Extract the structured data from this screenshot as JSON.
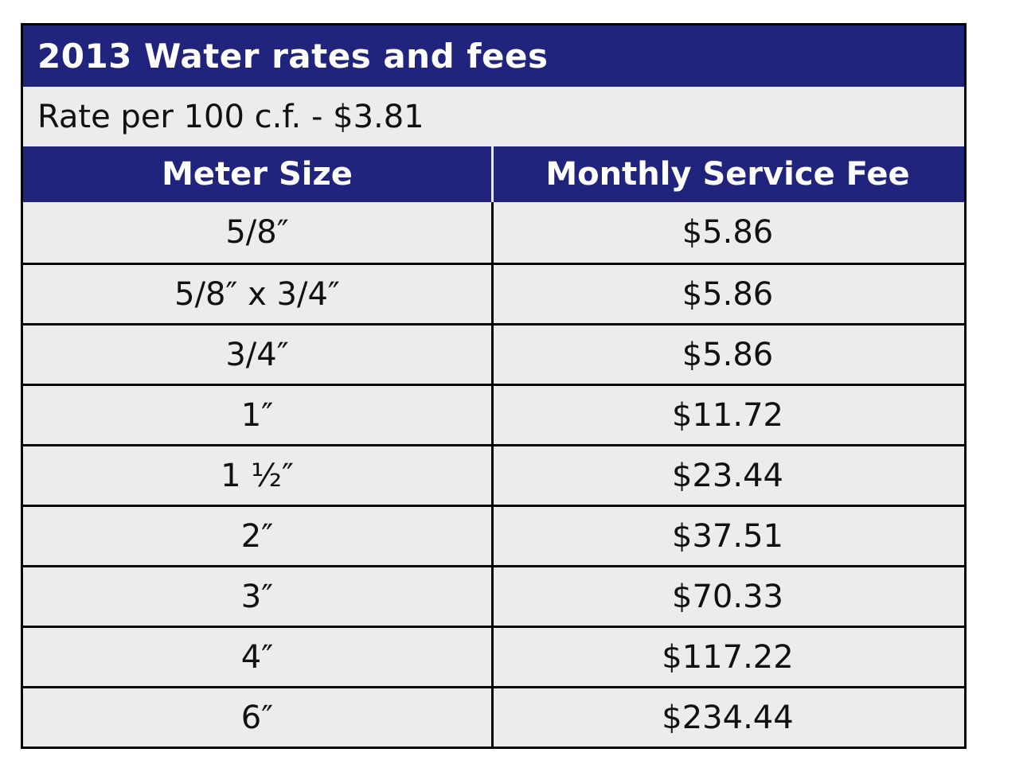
{
  "table": {
    "title": "2013 Water rates and fees",
    "rate_line": "Rate per 100 c.f. - $3.81",
    "headers": [
      "Meter Size",
      "Monthly Service Fee"
    ],
    "rows": [
      {
        "meter_size": "5/8″",
        "fee": "$5.86"
      },
      {
        "meter_size": "5/8″ x 3/4″",
        "fee": "$5.86"
      },
      {
        "meter_size": "3/4″",
        "fee": "$5.86"
      },
      {
        "meter_size": "1″",
        "fee": "$11.72"
      },
      {
        "meter_size": "1 ½″",
        "fee": "$23.44"
      },
      {
        "meter_size": "2″",
        "fee": "$37.51"
      },
      {
        "meter_size": "3″",
        "fee": "$70.33"
      },
      {
        "meter_size": "4″",
        "fee": "$117.22"
      },
      {
        "meter_size": "6″",
        "fee": "$234.44"
      }
    ]
  },
  "colors": {
    "header_bg": "#21247c",
    "row_bg": "#ececec",
    "border": "#000000"
  }
}
